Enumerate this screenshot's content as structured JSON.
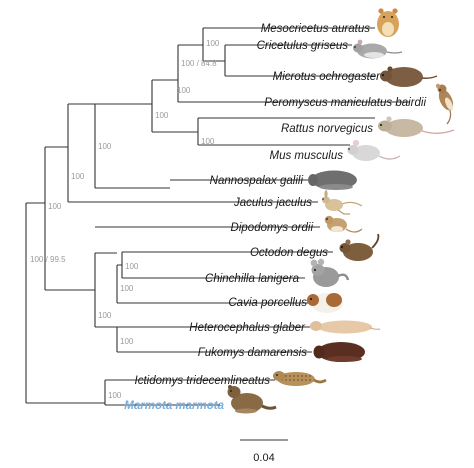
{
  "scale_label": "0.04",
  "supports": {
    "hamster_pair": "100",
    "hamster_vole": "100 / 84.8",
    "cricetid": "100",
    "muroid_core": "100",
    "rat_mouse": "100",
    "muroid": "100",
    "muroidea": "100",
    "myomorpha": "100",
    "rodentia": "100 / 99.5",
    "octodon_chinchilla": "100",
    "cavia_group": "100",
    "hystricomorpha": "100",
    "bathyergid": "100",
    "sciurid": "100"
  },
  "taxa": {
    "mesocricetus": "Mesocricetus auratus",
    "cricetulus": "Cricetulus griseus",
    "microtus": "Microtus ochrogaster",
    "peromyscus": "Peromyscus maniculatus bairdii",
    "rattus": "Rattus norvegicus",
    "mus": "Mus musculus",
    "nannospalax": "Nannospalax galili",
    "jaculus": "Jaculus jaculus",
    "dipodomys": "Dipodomys ordii",
    "octodon": "Octodon degus",
    "chinchilla": "Chinchilla lanigera",
    "cavia": "Cavia porcellus",
    "heterocephalus": "Heterocephalus glaber",
    "fukomys": "Fukomys damarensis",
    "ictidomys": "Ictidomys tridecemlineatus",
    "marmota": "Marmota marmota"
  },
  "colors": {
    "branch": "#333333",
    "highlight": "#7aaedc",
    "support": "#9a9a9a"
  }
}
